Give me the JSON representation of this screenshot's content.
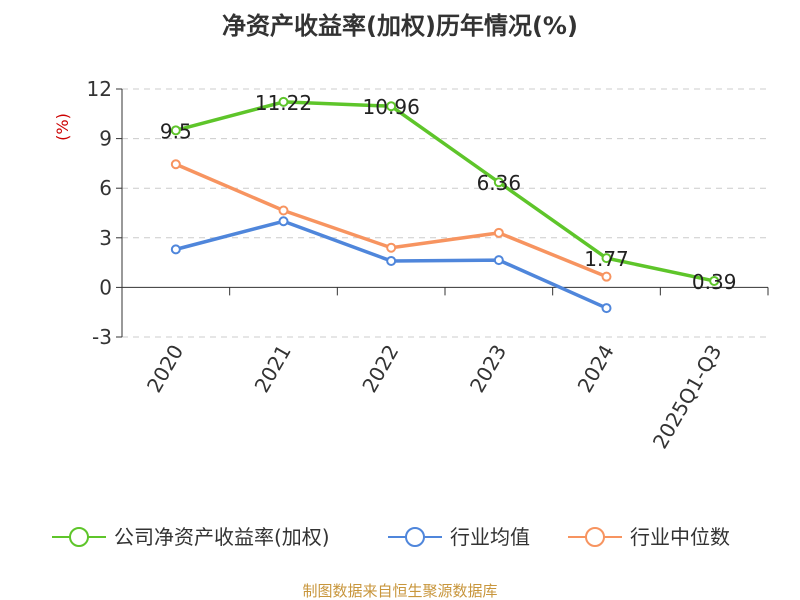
{
  "chart_data": {
    "type": "line",
    "title": "净资产收益率(加权)历年情况(%)",
    "ylabel": "(%)",
    "xlabel": "",
    "ylim": [
      -3,
      12
    ],
    "yticks": [
      12,
      9,
      6,
      3,
      0,
      -3
    ],
    "grid": true,
    "legend_position": "bottom",
    "categories": [
      "2020",
      "2021",
      "2022",
      "2023",
      "2024",
      "2025Q1-Q3"
    ],
    "series": [
      {
        "name": "公司净资产收益率(加权)",
        "color": "#5ec52a",
        "values": [
          9.5,
          11.22,
          10.96,
          6.36,
          1.77,
          0.39
        ],
        "labels": [
          "9.5",
          "11.22",
          "10.96",
          "6.36",
          "1.77",
          "0.39"
        ]
      },
      {
        "name": "行业均值",
        "color": "#4f86db",
        "values": [
          2.3,
          4.0,
          1.6,
          1.65,
          -1.25,
          null
        ],
        "labels": null
      },
      {
        "name": "行业中位数",
        "color": "#f79460",
        "values": [
          7.45,
          4.65,
          2.4,
          3.3,
          0.65,
          null
        ],
        "labels": null
      }
    ]
  },
  "footer": {
    "source": "制图数据来自恒生聚源数据库",
    "source_color": "#c8963c"
  },
  "colors": {
    "unit_label": "#cc0000",
    "axis": "#333333",
    "grid": "#cccccc"
  }
}
